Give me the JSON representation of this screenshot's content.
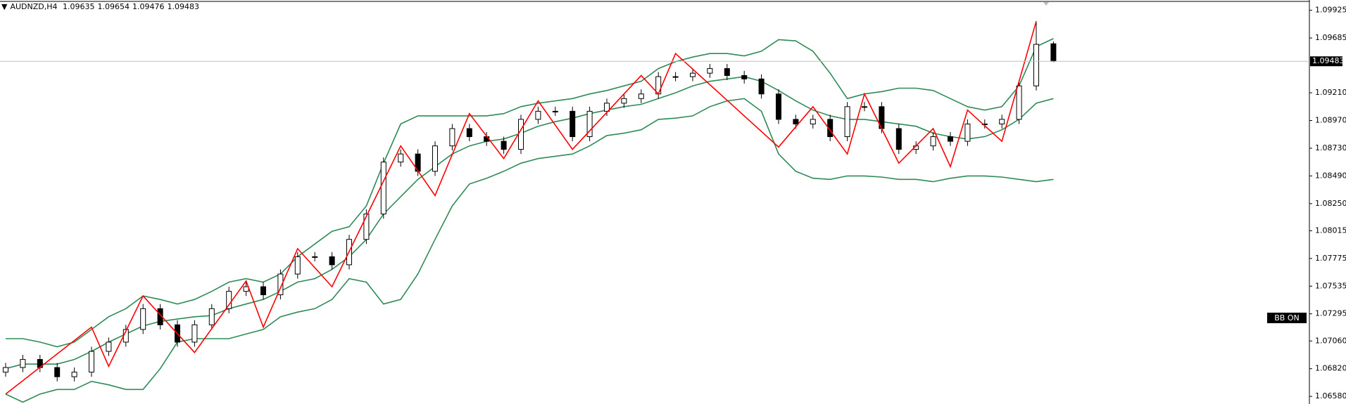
{
  "chart_data": {
    "type": "candlestick",
    "symbol": "AUDNZD,H4",
    "indicator_button": "BB ON",
    "ylim": [
      1.06514,
      1.10014
    ],
    "yticks": [
      1.09925,
      1.09685,
      {
        "value": 1.0921,
        "label": "1.09210"
      },
      {
        "value": 1.0897,
        "label": "1.08970"
      },
      {
        "value": 1.0873,
        "label": "1.08730"
      },
      {
        "value": 1.0849,
        "label": "1.08490"
      },
      {
        "value": 1.0825,
        "label": "1.08250"
      },
      1.08015,
      1.07775,
      1.07535,
      1.07295,
      {
        "value": 1.0706,
        "label": "1.07060"
      },
      {
        "value": 1.0682,
        "label": "1.06820"
      },
      {
        "value": 1.0658,
        "label": "1.06580"
      }
    ],
    "candles": {
      "up_color": "#ffffff",
      "down_color": "#000000",
      "open": [
        1.0679,
        1.0683,
        1.069,
        1.0683,
        1.0675,
        1.0679,
        1.0697,
        1.0705,
        1.0716,
        1.0734,
        1.072,
        1.0705,
        1.072,
        1.0734,
        1.0749,
        1.0753,
        1.0746,
        1.0764,
        1.0779,
        1.0779,
        1.0772,
        1.0794,
        1.0816,
        1.0861,
        1.0868,
        1.0853,
        1.0875,
        1.089,
        1.0883,
        1.0879,
        1.0872,
        1.0898,
        1.0905,
        1.0905,
        1.0883,
        1.0905,
        1.0912,
        1.0916,
        1.092,
        1.0935,
        1.0935,
        1.0938,
        1.0942,
        1.0936,
        1.0933,
        1.092,
        1.0898,
        1.0894,
        1.0898,
        1.0883,
        1.0909,
        1.0909,
        1.089,
        1.0872,
        1.0875,
        1.0883,
        1.0879,
        1.0894,
        1.0894,
        1.0898,
        1.0927,
        1.09635
      ],
      "high": [
        1.0687,
        1.0694,
        1.0694,
        1.0687,
        1.0683,
        1.0701,
        1.0709,
        1.072,
        1.0738,
        1.0738,
        1.0724,
        1.0724,
        1.0738,
        1.0753,
        1.0757,
        1.0757,
        1.0768,
        1.0783,
        1.0783,
        1.0783,
        1.0798,
        1.082,
        1.0865,
        1.0872,
        1.0872,
        1.0879,
        1.0894,
        1.0894,
        1.0887,
        1.0883,
        1.0902,
        1.0909,
        1.0909,
        1.0909,
        1.0909,
        1.0916,
        1.092,
        1.0924,
        1.0939,
        1.0939,
        1.0942,
        1.0946,
        1.0946,
        1.094,
        1.0937,
        1.0924,
        1.0902,
        1.0902,
        1.0902,
        1.0913,
        1.0913,
        1.0913,
        1.0894,
        1.0879,
        1.0887,
        1.0887,
        1.0898,
        1.0898,
        1.0902,
        1.0931,
        1.0983,
        1.09654
      ],
      "low": [
        1.0675,
        1.0679,
        1.0679,
        1.0671,
        1.0671,
        1.0675,
        1.0693,
        1.0701,
        1.0712,
        1.0716,
        1.0701,
        1.0701,
        1.0716,
        1.073,
        1.0745,
        1.0742,
        1.0742,
        1.076,
        1.0775,
        1.0768,
        1.0768,
        1.079,
        1.0812,
        1.0857,
        1.0849,
        1.0849,
        1.0871,
        1.0879,
        1.0875,
        1.0868,
        1.0868,
        1.0894,
        1.0901,
        1.0879,
        1.0879,
        1.0901,
        1.0908,
        1.0912,
        1.0916,
        1.0931,
        1.0931,
        1.0934,
        1.0932,
        1.0929,
        1.0916,
        1.0894,
        1.089,
        1.089,
        1.0879,
        1.0879,
        1.0905,
        1.0886,
        1.0868,
        1.0868,
        1.0871,
        1.0875,
        1.0875,
        1.089,
        1.089,
        1.0894,
        1.0923,
        1.09476
      ],
      "close": [
        1.0683,
        1.069,
        1.0683,
        1.0675,
        1.0679,
        1.0697,
        1.0705,
        1.0716,
        1.0734,
        1.072,
        1.0705,
        1.072,
        1.0734,
        1.0749,
        1.0753,
        1.0746,
        1.0764,
        1.0779,
        1.0779,
        1.0772,
        1.0794,
        1.0816,
        1.0861,
        1.0868,
        1.0853,
        1.0875,
        1.089,
        1.0883,
        1.0879,
        1.0872,
        1.0898,
        1.0905,
        1.0905,
        1.0883,
        1.0905,
        1.0912,
        1.0916,
        1.092,
        1.0935,
        1.0935,
        1.0938,
        1.0942,
        1.0936,
        1.0933,
        1.092,
        1.0898,
        1.0894,
        1.0898,
        1.0883,
        1.0909,
        1.0909,
        1.089,
        1.0872,
        1.0875,
        1.0883,
        1.0879,
        1.0894,
        1.0894,
        1.0898,
        1.0927,
        1.0963,
        1.09483
      ]
    },
    "bands": {
      "color": "#2e8b57",
      "upper": [
        1.0708,
        1.0708,
        1.0705,
        1.0701,
        1.0705,
        1.0716,
        1.0727,
        1.0734,
        1.0745,
        1.0742,
        1.0738,
        1.0742,
        1.0749,
        1.0757,
        1.076,
        1.0757,
        1.0764,
        1.0779,
        1.079,
        1.0801,
        1.0805,
        1.0823,
        1.086,
        1.0894,
        1.0901,
        1.0901,
        1.0901,
        1.0901,
        1.0901,
        1.0903,
        1.0909,
        1.0912,
        1.0914,
        1.0916,
        1.092,
        1.0923,
        1.0927,
        1.0931,
        1.0942,
        1.0948,
        1.0952,
        1.0955,
        1.0955,
        1.0953,
        1.0957,
        1.0967,
        1.0966,
        1.0957,
        1.0938,
        1.0916,
        1.092,
        1.0922,
        1.0925,
        1.0925,
        1.0923,
        1.0916,
        1.0909,
        1.0906,
        1.0909,
        1.0927,
        1.0961,
        1.0968
      ],
      "middle": [
        1.0682,
        1.0686,
        1.0686,
        1.0686,
        1.069,
        1.0697,
        1.0705,
        1.0712,
        1.0719,
        1.0723,
        1.0725,
        1.0727,
        1.0728,
        1.0734,
        1.0738,
        1.0742,
        1.0749,
        1.0757,
        1.076,
        1.0768,
        1.0779,
        1.0794,
        1.0816,
        1.0831,
        1.0846,
        1.0857,
        1.0868,
        1.0875,
        1.0879,
        1.0881,
        1.0886,
        1.0892,
        1.0896,
        1.0899,
        1.0903,
        1.0906,
        1.0909,
        1.0911,
        1.0916,
        1.0921,
        1.0927,
        1.0931,
        1.0933,
        1.0935,
        1.0931,
        1.0923,
        1.0914,
        1.0906,
        1.0901,
        1.0898,
        1.0898,
        1.0896,
        1.0894,
        1.0892,
        1.0886,
        1.0883,
        1.0881,
        1.0883,
        1.0889,
        1.0898,
        1.0912,
        1.0916
      ],
      "lower": [
        1.066,
        1.0653,
        1.066,
        1.0664,
        1.0664,
        1.0671,
        1.0668,
        1.0664,
        1.0664,
        1.0682,
        1.0705,
        1.0708,
        1.0708,
        1.0708,
        1.0712,
        1.0716,
        1.0727,
        1.0731,
        1.0734,
        1.0742,
        1.076,
        1.0757,
        1.0738,
        1.0742,
        1.0764,
        1.0794,
        1.0823,
        1.0842,
        1.0847,
        1.0853,
        1.086,
        1.0864,
        1.0866,
        1.0868,
        1.0875,
        1.0884,
        1.0886,
        1.0889,
        1.0898,
        1.0899,
        1.0901,
        1.0909,
        1.0914,
        1.0916,
        1.0905,
        1.0868,
        1.0853,
        1.0847,
        1.0846,
        1.0849,
        1.0849,
        1.0848,
        1.0846,
        1.0846,
        1.0844,
        1.0847,
        1.0849,
        1.0849,
        1.0848,
        1.0846,
        1.0844,
        1.0846
      ]
    },
    "zigzag": {
      "color": "#ff0000",
      "x": [
        0,
        5,
        6,
        8,
        11,
        14,
        15,
        17,
        19,
        23,
        25,
        27,
        29,
        31,
        33,
        37,
        38,
        39,
        45,
        47,
        49,
        50,
        52,
        54,
        55,
        56,
        58,
        60
      ],
      "y": [
        1.066,
        1.0718,
        1.0684,
        1.0745,
        1.0696,
        1.0758,
        1.0718,
        1.0786,
        1.0753,
        1.0875,
        1.0832,
        1.0903,
        1.0864,
        1.0914,
        1.0872,
        1.0936,
        1.092,
        1.0955,
        1.0874,
        1.0909,
        1.0868,
        1.092,
        1.086,
        1.089,
        1.0857,
        1.0906,
        1.0879,
        1.0983
      ]
    }
  }
}
